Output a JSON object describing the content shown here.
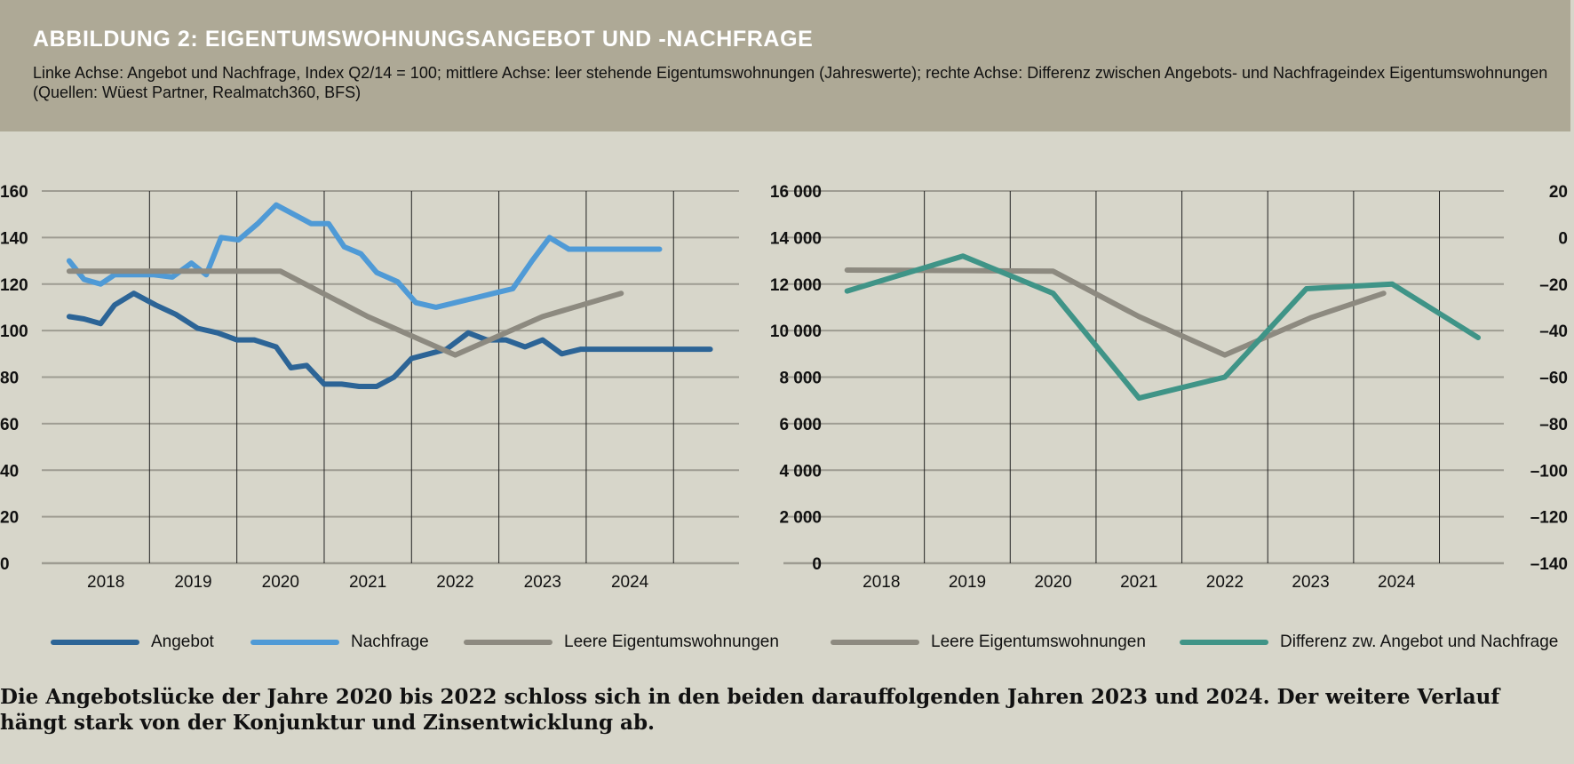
{
  "header": {
    "title": "ABBILDUNG 2: EIGENTUMSWOHNUNGSANGEBOT UND -NACHFRAGE",
    "subtitle": "Linke Achse: Angebot und Nachfrage, Index Q2/14 = 100; mittlere Achse: leer stehende Eigentumswohnungen (Jahreswerte); rechte Achse: Differenz zwischen Angebots- und Nachfrageindex Eigentumswohnungen (Quellen: Wüest Partner, Realmatch360, BFS)"
  },
  "colors": {
    "angebot": "#2c6496",
    "nachfrage": "#4f9ad6",
    "leer": "#8d8a80",
    "differenz": "#3f9487",
    "grid": "#9e9c92",
    "vline": "#222222",
    "background": "#d7d6ca",
    "header": "#aea996"
  },
  "legend": [
    {
      "label": "Angebot",
      "color": "#2c6496"
    },
    {
      "label": "Nachfrage",
      "color": "#4f9ad6"
    },
    {
      "label": "Leere Eigentumswohnungen",
      "color": "#8d8a80"
    },
    {
      "label": "Leere Eigentumswohnungen",
      "color": "#8d8a80"
    },
    {
      "label": "Differenz zw. Angebot und Nachfrage",
      "color": "#3f9487"
    }
  ],
  "caption": "Die Angebotslücke der Jahre 2020 bis 2022 schloss sich in den beiden darauffolgenden Jahren 2023 und 2024. Der weitere Verlauf hängt stark von der Konjunktur und Zinsentwicklung ab.",
  "chart_data": [
    {
      "type": "line",
      "x_ticks": [
        "2018",
        "2019",
        "2020",
        "2021",
        "2022",
        "2023",
        "2024"
      ],
      "x_tick_positions": [
        2018.0,
        2019.0,
        2020.0,
        2021.0,
        2022.0,
        2023.0,
        2024.0
      ],
      "xlim": [
        2017.5,
        2025.25
      ],
      "year_dividers": [
        2018.5,
        2019.5,
        2020.5,
        2021.5,
        2022.5,
        2023.5,
        2024.5
      ],
      "y_ticks": [
        "0",
        "20",
        "40",
        "60",
        "80",
        "100",
        "120",
        "140",
        "160"
      ],
      "ylim": [
        0,
        160
      ],
      "grid": true,
      "series": [
        {
          "name": "Angebot",
          "color": "#2c6496",
          "x": [
            2017.58,
            2017.75,
            2017.94,
            2018.1,
            2018.32,
            2018.57,
            2018.8,
            2019.05,
            2019.28,
            2019.5,
            2019.7,
            2019.95,
            2020.12,
            2020.3,
            2020.5,
            2020.7,
            2020.9,
            2021.1,
            2021.3,
            2021.5,
            2021.7,
            2021.9,
            2022.15,
            2022.36,
            2022.58,
            2022.8,
            2023.0,
            2023.22,
            2023.44,
            2023.66,
            2023.88,
            2024.1,
            2024.3,
            2024.5,
            2024.7,
            2024.92
          ],
          "y": [
            106,
            105,
            103,
            111,
            116,
            111,
            107,
            101,
            99,
            96,
            96,
            93,
            84,
            85,
            77,
            77,
            76,
            76,
            80,
            88,
            90,
            92,
            99,
            96,
            96,
            93,
            96,
            90,
            92,
            92,
            92,
            92,
            92,
            92,
            92,
            92
          ]
        },
        {
          "name": "Nachfrage",
          "color": "#4f9ad6",
          "x": [
            2017.58,
            2017.75,
            2017.94,
            2018.1,
            2018.32,
            2018.55,
            2018.76,
            2018.98,
            2019.15,
            2019.32,
            2019.52,
            2019.74,
            2019.95,
            2020.15,
            2020.35,
            2020.55,
            2020.73,
            2020.92,
            2021.1,
            2021.34,
            2021.55,
            2021.78,
            2022.0,
            2022.22,
            2022.44,
            2022.66,
            2022.88,
            2023.08,
            2023.3,
            2023.5,
            2023.7,
            2023.92,
            2024.12,
            2024.34
          ],
          "y": [
            130,
            122,
            120,
            124,
            124,
            124,
            123,
            129,
            124,
            140,
            139,
            146,
            154,
            150,
            146,
            146,
            136,
            133,
            125,
            121,
            112,
            110,
            112,
            114,
            116,
            118,
            130,
            140,
            135,
            135,
            135,
            135,
            135,
            135
          ]
        },
        {
          "name": "Leere Eigentumswohnungen",
          "color": "#8d8a80",
          "x": [
            2017.58,
            2018.0,
            2019.0,
            2020.0,
            2021.0,
            2022.0,
            2023.0,
            2023.9
          ],
          "y": [
            125.5,
            125.5,
            125.5,
            125.5,
            106,
            89.5,
            106,
            116
          ]
        }
      ]
    },
    {
      "type": "line",
      "x_ticks": [
        "2018",
        "2019",
        "2020",
        "2021",
        "2022",
        "2023",
        "2024"
      ],
      "x_tick_positions": [
        2018.0,
        2019.0,
        2020.0,
        2021.0,
        2022.0,
        2023.0,
        2024.0
      ],
      "xlim": [
        2017.5,
        2025.25
      ],
      "year_dividers": [
        2018.5,
        2019.5,
        2020.5,
        2021.5,
        2022.5,
        2023.5,
        2024.5
      ],
      "y_ticks_left": [
        "0",
        "2 000",
        "4 000",
        "6 000",
        "8 000",
        "10 000",
        "12 000",
        "14 000",
        "16 000"
      ],
      "ylim_left": [
        0,
        16000
      ],
      "y_ticks_right": [
        "–140",
        "–120",
        "–100",
        "–80",
        "–60",
        "–40",
        "–20",
        "0",
        "20"
      ],
      "ylim_right": [
        -140,
        20
      ],
      "grid": true,
      "series": [
        {
          "name": "Leere Eigentumswohnungen",
          "color": "#8d8a80",
          "axis": "left",
          "x": [
            2017.6,
            2019.0,
            2020.0,
            2021.0,
            2022.0,
            2023.0,
            2023.85
          ],
          "y": [
            12600,
            12580,
            12550,
            10600,
            8950,
            10550,
            11600
          ]
        },
        {
          "name": "Differenz zw. Angebot und Nachfrage",
          "color": "#3f9487",
          "axis": "right",
          "x": [
            2017.6,
            2018.95,
            2020.0,
            2021.0,
            2022.0,
            2022.95,
            2023.95,
            2024.95
          ],
          "y": [
            -23,
            -8,
            -24,
            -69,
            -60,
            -22,
            -20,
            -43
          ]
        }
      ]
    }
  ]
}
